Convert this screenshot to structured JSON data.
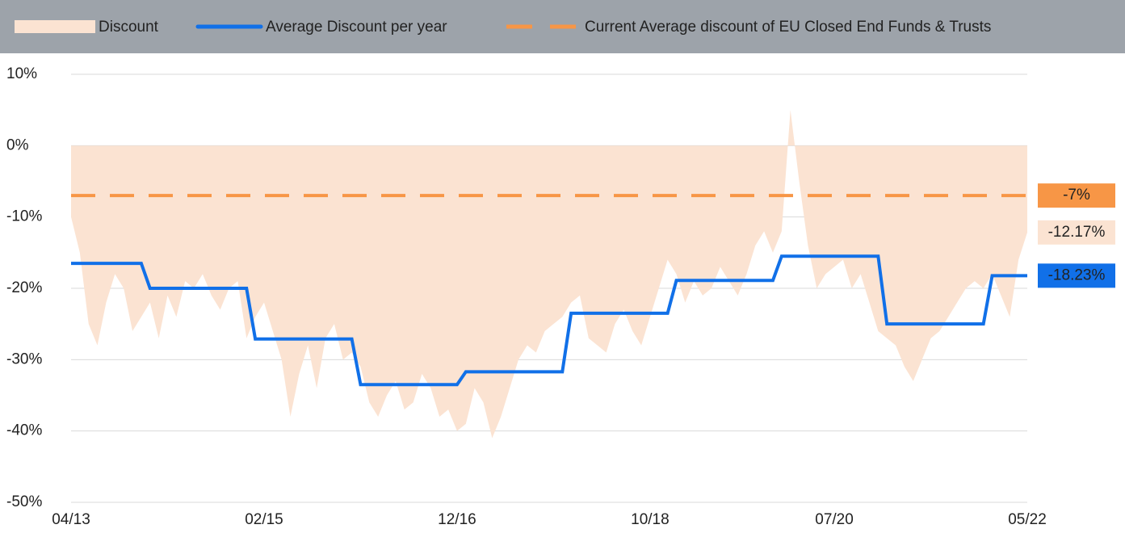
{
  "chart_data": {
    "type": "area-step",
    "categories": [
      "04/13",
      null,
      null,
      null,
      null,
      null,
      null,
      null,
      null,
      null,
      null,
      null,
      null,
      null,
      null,
      null,
      null,
      null,
      null,
      null,
      null,
      null,
      "02/15",
      null,
      null,
      null,
      null,
      null,
      null,
      null,
      null,
      null,
      null,
      null,
      null,
      null,
      null,
      null,
      null,
      null,
      null,
      null,
      null,
      null,
      "12/16",
      null,
      null,
      null,
      null,
      null,
      null,
      null,
      null,
      null,
      null,
      null,
      null,
      null,
      null,
      null,
      null,
      null,
      null,
      null,
      null,
      null,
      "10/18",
      null,
      null,
      null,
      null,
      null,
      null,
      null,
      null,
      null,
      null,
      null,
      null,
      null,
      null,
      null,
      null,
      null,
      null,
      null,
      null,
      "07/20",
      null,
      null,
      null,
      null,
      null,
      null,
      null,
      null,
      null,
      null,
      null,
      null,
      null,
      null,
      null,
      null,
      null,
      null,
      null,
      null,
      null,
      "05/22"
    ],
    "series": [
      {
        "name": "Discount",
        "kind": "area",
        "color": "#fbe3d2",
        "end_label": "-12.17%",
        "values": [
          -10,
          -15,
          -25,
          -28,
          -22,
          -18,
          -20,
          -26,
          -24,
          -22,
          -27,
          -21,
          -24,
          -19,
          -20,
          -18,
          -21,
          -23,
          -20,
          -19,
          -27,
          -24,
          -22,
          -26,
          -30,
          -38,
          -32,
          -28,
          -34,
          -27,
          -25,
          -30,
          -29,
          -31,
          -36,
          -38,
          -35,
          -33,
          -37,
          -36,
          -32,
          -34,
          -38,
          -37,
          -40,
          -39,
          -34,
          -36,
          -41,
          -38,
          -34,
          -30,
          -28,
          -29,
          -26,
          -25,
          -24,
          -22,
          -21,
          -27,
          -28,
          -29,
          -25,
          -23,
          -26,
          -28,
          -24,
          -20,
          -16,
          -18,
          -22,
          -19,
          -21,
          -20,
          -17,
          -19,
          -21,
          -18,
          -14,
          -12,
          -15,
          -12,
          5,
          -5,
          -14,
          -20,
          -18,
          -17,
          -16,
          -20,
          -18,
          -22,
          -26,
          -27,
          -28,
          -31,
          -33,
          -30,
          -27,
          -26,
          -24,
          -22,
          -20,
          -19,
          -20,
          -18,
          -21,
          -24,
          -16,
          -12.17
        ]
      },
      {
        "name": "Average Discount per year",
        "kind": "line",
        "color": "#1170e8",
        "end_label": "-18.23%",
        "values": [
          -16.5,
          -16.5,
          -16.5,
          -16.5,
          -16.5,
          -16.5,
          -16.5,
          -16.5,
          -16.5,
          -20,
          -20,
          -20,
          -20,
          -20,
          -20,
          -20,
          -20,
          -20,
          -20,
          -20,
          -20,
          -27.1,
          -27.1,
          -27.1,
          -27.1,
          -27.1,
          -27.1,
          -27.1,
          -27.1,
          -27.1,
          -27.1,
          -27.1,
          -27.1,
          -33.5,
          -33.5,
          -33.5,
          -33.5,
          -33.5,
          -33.5,
          -33.5,
          -33.5,
          -33.5,
          -33.5,
          -33.5,
          -33.5,
          -31.7,
          -31.7,
          -31.7,
          -31.7,
          -31.7,
          -31.7,
          -31.7,
          -31.7,
          -31.7,
          -31.7,
          -31.7,
          -31.7,
          -23.5,
          -23.5,
          -23.5,
          -23.5,
          -23.5,
          -23.5,
          -23.5,
          -23.5,
          -23.5,
          -23.5,
          -23.5,
          -23.5,
          -18.9,
          -18.9,
          -18.9,
          -18.9,
          -18.9,
          -18.9,
          -18.9,
          -18.9,
          -18.9,
          -18.9,
          -18.9,
          -18.9,
          -15.5,
          -15.5,
          -15.5,
          -15.5,
          -15.5,
          -15.5,
          -15.5,
          -15.5,
          -15.5,
          -15.5,
          -15.5,
          -15.5,
          -25,
          -25,
          -25,
          -25,
          -25,
          -25,
          -25,
          -25,
          -25,
          -25,
          -25,
          -25,
          -18.23,
          -18.23,
          -18.23,
          -18.23,
          -18.23
        ]
      }
    ],
    "reference_line": {
      "name": "Current Average discount of EU Closed End Funds & Trusts",
      "value": -7,
      "label": "-7%",
      "color": "#f79646"
    },
    "ylim": [
      -50,
      10
    ],
    "yticks": [
      {
        "value": -50,
        "label": "-50%"
      },
      {
        "value": -40,
        "label": "-40%"
      },
      {
        "value": -30,
        "label": "-30%"
      },
      {
        "value": -20,
        "label": "-20%"
      },
      {
        "value": -10,
        "label": "-10%"
      },
      {
        "value": 0,
        "label": "0%"
      },
      {
        "value": 10,
        "label": "10%"
      }
    ],
    "grid": true
  }
}
